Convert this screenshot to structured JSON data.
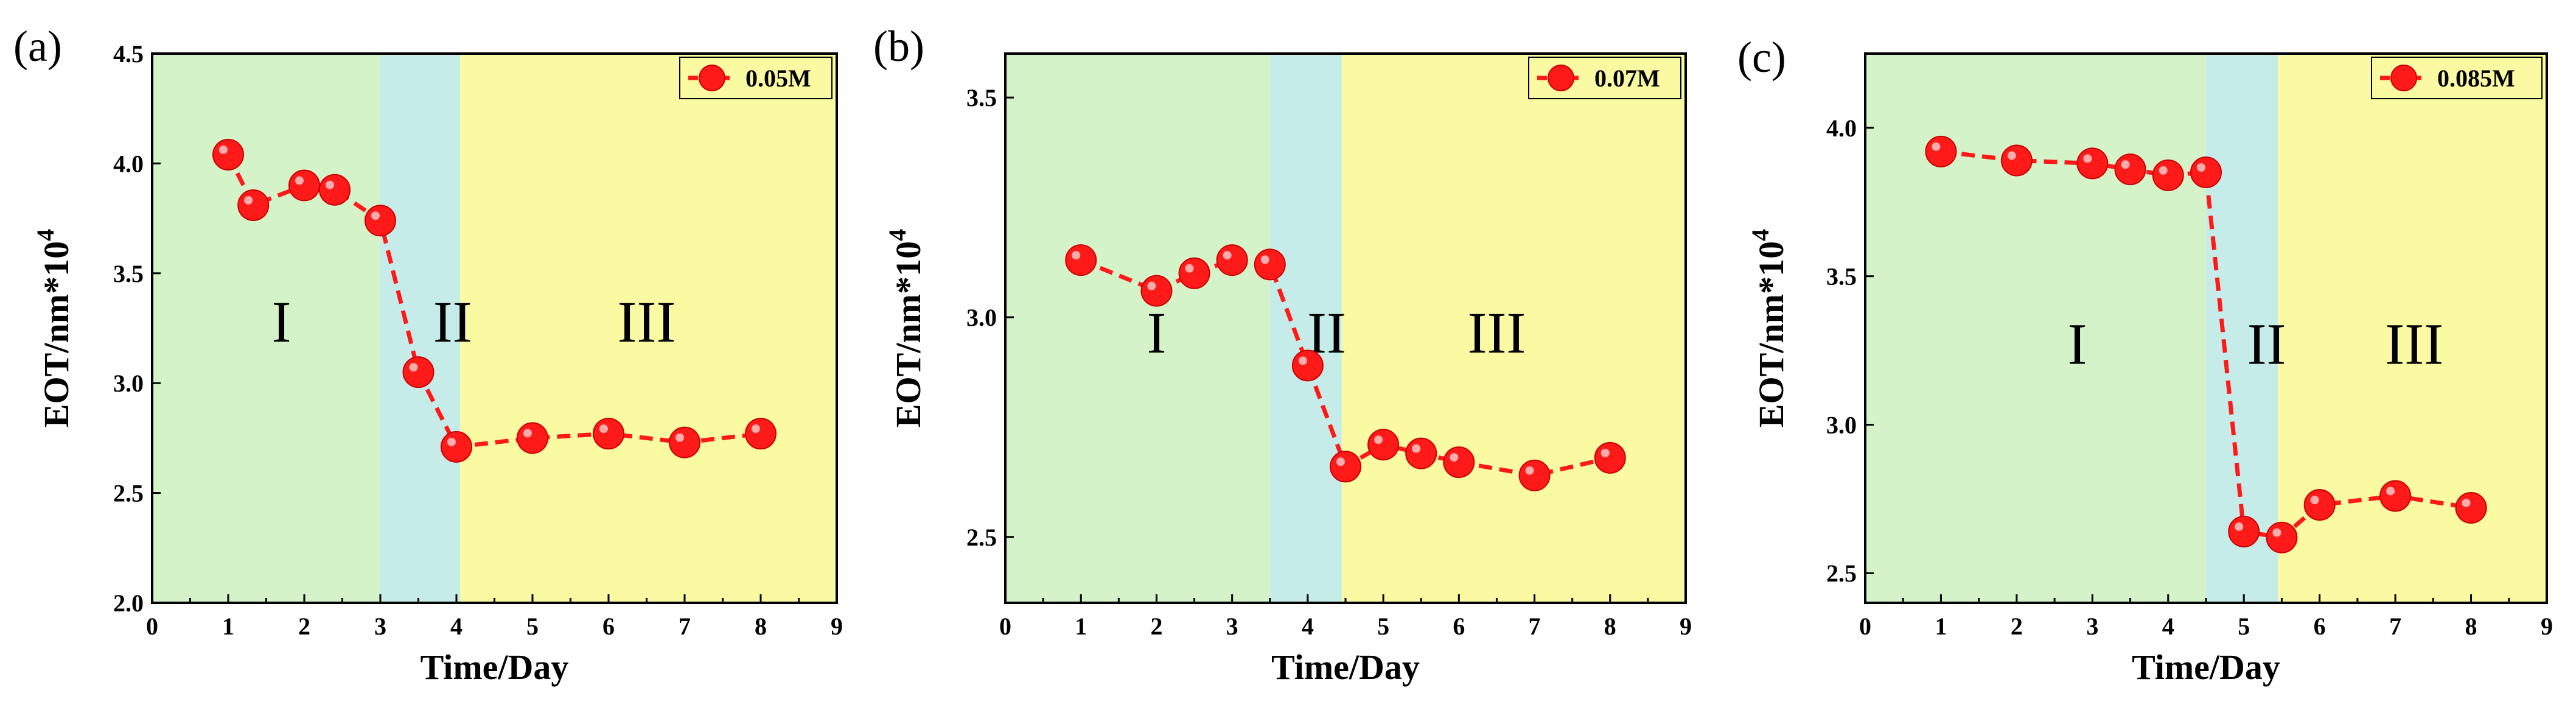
{
  "chart_data": [
    {
      "type": "line",
      "panel_label": "(a)",
      "xlabel": "Time/Day",
      "ylabel": "EOT/nm*10",
      "ylabel_sup": "4",
      "xlim": [
        0,
        9
      ],
      "ylim": [
        2.0,
        4.5
      ],
      "xticks": [
        0,
        1,
        2,
        3,
        4,
        5,
        6,
        7,
        8,
        9
      ],
      "yticks": [
        2.0,
        2.5,
        3.0,
        3.5,
        4.0,
        4.5
      ],
      "ytick_labels": [
        "2.0",
        "2.5",
        "3.0",
        "3.5",
        "4.0",
        "4.5"
      ],
      "legend_position": "top-right",
      "regions": [
        {
          "label": "I",
          "x0": 0,
          "x1": 3,
          "color": "#d4f3c8",
          "label_x": 1.7,
          "label_y": 3.25
        },
        {
          "label": "II",
          "x0": 3,
          "x1": 4.05,
          "color": "#c6ecea",
          "label_x": 3.95,
          "label_y": 3.25
        },
        {
          "label": "III",
          "x0": 4.05,
          "x1": 9,
          "color": "#fafaa2",
          "label_x": 6.5,
          "label_y": 3.25
        }
      ],
      "series": [
        {
          "name": "0.05M",
          "color": "#ff1a1a",
          "x": [
            1,
            1.33,
            2,
            2.4,
            3,
            3.5,
            4,
            5,
            6,
            7,
            8
          ],
          "y": [
            4.04,
            3.81,
            3.9,
            3.88,
            3.74,
            3.05,
            2.71,
            2.75,
            2.77,
            2.73,
            2.77
          ]
        }
      ]
    },
    {
      "type": "line",
      "panel_label": "(b)",
      "xlabel": "Time/Day",
      "ylabel": "EOT/nm*10",
      "ylabel_sup": "4",
      "xlim": [
        0,
        9
      ],
      "ylim": [
        2.35,
        3.6
      ],
      "xticks": [
        0,
        1,
        2,
        3,
        4,
        5,
        6,
        7,
        8,
        9
      ],
      "yticks": [
        2.5,
        3.0,
        3.5
      ],
      "ytick_labels": [
        "2.5",
        "3.0",
        "3.5"
      ],
      "legend_position": "top-right",
      "regions": [
        {
          "label": "I",
          "x0": 0,
          "x1": 3.5,
          "color": "#d4f3c8",
          "label_x": 2.0,
          "label_y": 2.95
        },
        {
          "label": "II",
          "x0": 3.5,
          "x1": 4.45,
          "color": "#c6ecea",
          "label_x": 4.25,
          "label_y": 2.95
        },
        {
          "label": "III",
          "x0": 4.45,
          "x1": 9,
          "color": "#fafaa2",
          "label_x": 6.5,
          "label_y": 2.95
        }
      ],
      "series": [
        {
          "name": "0.07M",
          "color": "#ff1a1a",
          "x": [
            1,
            2,
            2.5,
            3,
            3.5,
            4,
            4.5,
            5,
            5.5,
            6,
            7,
            8
          ],
          "y": [
            3.13,
            3.06,
            3.1,
            3.13,
            3.12,
            2.89,
            2.66,
            2.71,
            2.69,
            2.67,
            2.64,
            2.68
          ]
        }
      ]
    },
    {
      "type": "line",
      "panel_label": "(c)",
      "xlabel": "Time/Day",
      "ylabel": "EOT/nm*10",
      "ylabel_sup": "4",
      "xlim": [
        0,
        9
      ],
      "ylim": [
        2.4,
        4.25
      ],
      "xticks": [
        0,
        1,
        2,
        3,
        4,
        5,
        6,
        7,
        8,
        9
      ],
      "yticks": [
        2.5,
        3.0,
        3.5,
        4.0
      ],
      "ytick_labels": [
        "2.5",
        "3.0",
        "3.5",
        "4.0"
      ],
      "legend_position": "top-right",
      "regions": [
        {
          "label": "I",
          "x0": 0,
          "x1": 4.5,
          "color": "#d4f3c8",
          "label_x": 2.8,
          "label_y": 3.25
        },
        {
          "label": "II",
          "x0": 4.5,
          "x1": 5.45,
          "color": "#c6ecea",
          "label_x": 5.3,
          "label_y": 3.25
        },
        {
          "label": "III",
          "x0": 5.45,
          "x1": 9,
          "color": "#fafaa2",
          "label_x": 7.25,
          "label_y": 3.25
        }
      ],
      "series": [
        {
          "name": "0.085M",
          "color": "#ff1a1a",
          "x": [
            1,
            2,
            3,
            3.5,
            4,
            4.5,
            5,
            5.5,
            6,
            7,
            8
          ],
          "y": [
            3.92,
            3.89,
            3.88,
            3.86,
            3.84,
            3.85,
            2.64,
            2.62,
            2.73,
            2.76,
            2.72
          ]
        }
      ]
    }
  ]
}
